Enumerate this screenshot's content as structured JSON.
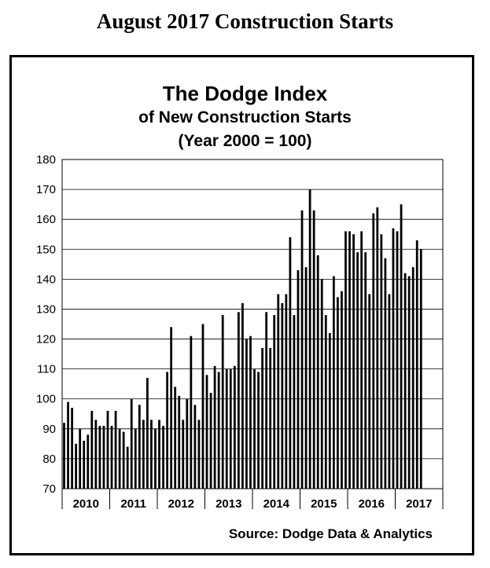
{
  "page_title": "August 2017 Construction Starts",
  "source": "Source:  Dodge Data & Analytics",
  "chart_data": {
    "type": "bar",
    "title": "The Dodge Index",
    "subtitle": "of New Construction Starts",
    "subtitle2": "(Year 2000 = 100)",
    "ylim": [
      70,
      180
    ],
    "yticks": [
      70,
      80,
      90,
      100,
      110,
      120,
      130,
      140,
      150,
      160,
      170,
      180
    ],
    "grid": true,
    "bar_color": "#000000",
    "year_labels": [
      "2010",
      "2011",
      "2012",
      "2013",
      "2014",
      "2015",
      "2016",
      "2017"
    ],
    "values": [
      92,
      99,
      97,
      85,
      90,
      86,
      88,
      96,
      93,
      91,
      91,
      96,
      91,
      96,
      90,
      89,
      84,
      100,
      90,
      98,
      93,
      107,
      93,
      90,
      93,
      91,
      109,
      124,
      104,
      101,
      93,
      100,
      121,
      98,
      93,
      125,
      108,
      102,
      111,
      109,
      128,
      110,
      110,
      111,
      129,
      132,
      120,
      121,
      110,
      109,
      117,
      129,
      117,
      128,
      135,
      132,
      135,
      154,
      128,
      143,
      163,
      144,
      170,
      163,
      148,
      140,
      128,
      122,
      141,
      134,
      136,
      156,
      156,
      155,
      149,
      156,
      149,
      135,
      162,
      164,
      155,
      147,
      135,
      157,
      156,
      165,
      142,
      141,
      144,
      153,
      150
    ]
  }
}
